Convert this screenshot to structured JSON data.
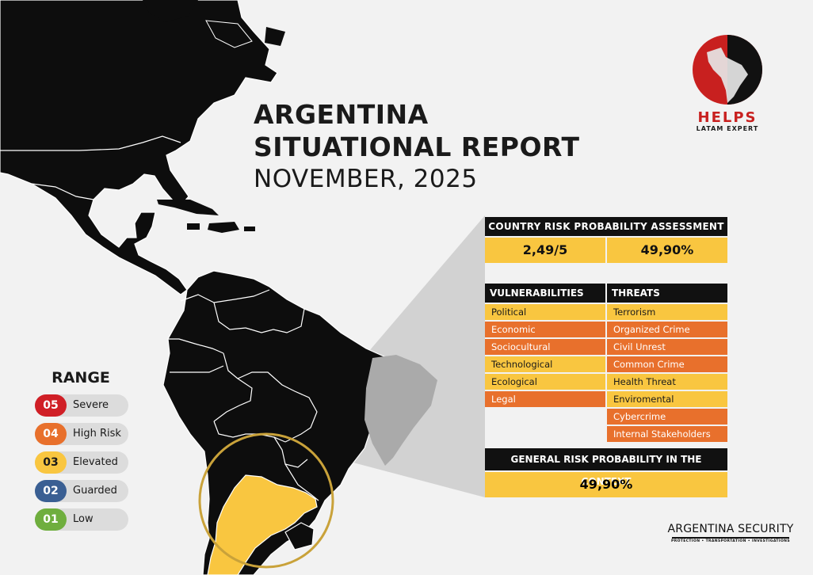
{
  "report": {
    "title_line1": "ARGENTINA",
    "title_line2": "SITUATIONAL REPORT",
    "date": "NOVEMBER, 2025"
  },
  "logo": {
    "name": "HELPS",
    "subtitle": "LATAM EXPERT"
  },
  "assessment": {
    "header": "COUNTRY RISK PROBABILITY ASSESSMENT",
    "score": "2,49/5",
    "percent": "49,90%",
    "vulnerabilities_header": "VULNERABILITIES",
    "threats_header": "THREATS",
    "vulnerabilities": [
      {
        "label": "Political",
        "level": "elevated"
      },
      {
        "label": "Economic",
        "level": "high"
      },
      {
        "label": "Sociocultural",
        "level": "high"
      },
      {
        "label": "Technological",
        "level": "elevated"
      },
      {
        "label": "Ecological",
        "level": "elevated"
      },
      {
        "label": "Legal",
        "level": "high"
      }
    ],
    "threats": [
      {
        "label": "Terrorism",
        "level": "elevated"
      },
      {
        "label": "Organized Crime",
        "level": "high"
      },
      {
        "label": "Civil Unrest",
        "level": "high"
      },
      {
        "label": "Common Crime",
        "level": "high"
      },
      {
        "label": "Health Threat",
        "level": "elevated"
      },
      {
        "label": "Enviromental",
        "level": "elevated"
      },
      {
        "label": "Cybercrime",
        "level": "high"
      },
      {
        "label": "Internal Stakeholders",
        "level": "high"
      }
    ],
    "general_header": "GENERAL RISK PROBABILITY IN THE CONTEXT",
    "general_value": "49,90%"
  },
  "range": {
    "title": "RANGE",
    "levels": [
      {
        "code": "05",
        "label": "Severe",
        "color": "#d01f26"
      },
      {
        "code": "04",
        "label": "High Risk",
        "color": "#e8702c"
      },
      {
        "code": "03",
        "label": "Elevated",
        "color": "#f9c640"
      },
      {
        "code": "02",
        "label": "Guarded",
        "color": "#3a5f93"
      },
      {
        "code": "01",
        "label": "Low",
        "color": "#6fae3e"
      }
    ]
  },
  "brand": {
    "name": "ARGENTINA SECURITY",
    "tagline": "PROTECTION • TRANSPORTATION • INVESTIGATIONS"
  },
  "colors": {
    "map_land": "#0d0d0d",
    "highlight": "#f9c640",
    "accent_red": "#c8201f",
    "callout_gray": "#c8c8c8",
    "circle": "#c9a23a"
  }
}
